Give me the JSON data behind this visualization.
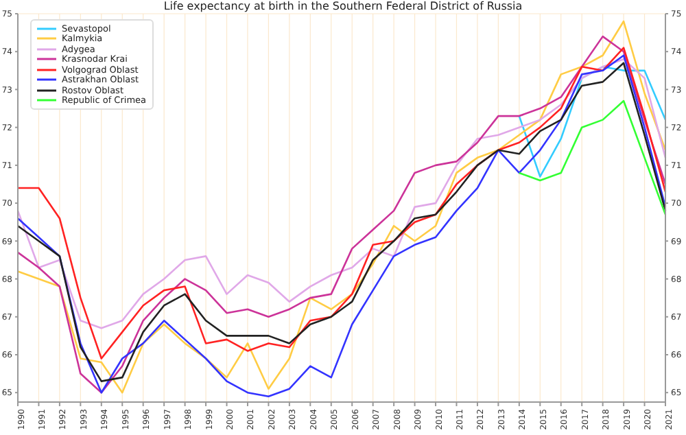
{
  "chart_data": {
    "type": "line",
    "title": "Life expectancy at birth in the Southern Federal District of Russia",
    "categories": [
      "1990",
      "1991",
      "1992",
      "1993",
      "1994",
      "1995",
      "1996",
      "1997",
      "1998",
      "1999",
      "2000",
      "2001",
      "2002",
      "2003",
      "2004",
      "2005",
      "2006",
      "2007",
      "2008",
      "2009",
      "2010",
      "2011",
      "2012",
      "2013",
      "2014",
      "2015",
      "2016",
      "2017",
      "2018",
      "2019",
      "2020",
      "2021"
    ],
    "series": [
      {
        "name": "Sevastopol",
        "color": "#33ccff",
        "values": [
          null,
          null,
          null,
          null,
          null,
          null,
          null,
          null,
          null,
          null,
          null,
          null,
          null,
          null,
          null,
          null,
          null,
          null,
          null,
          null,
          null,
          null,
          null,
          null,
          72.3,
          70.7,
          71.7,
          73.3,
          73.6,
          73.5,
          73.5,
          72.2
        ]
      },
      {
        "name": "Kalmykia",
        "color": "#ffcc44",
        "values": [
          68.2,
          68.0,
          67.8,
          65.9,
          65.8,
          65.0,
          66.3,
          66.8,
          66.3,
          65.9,
          65.4,
          66.3,
          65.1,
          65.9,
          67.5,
          67.2,
          67.6,
          68.4,
          69.4,
          69.0,
          69.4,
          70.8,
          71.2,
          71.4,
          71.8,
          72.2,
          73.4,
          73.6,
          73.9,
          74.8,
          72.9,
          71.4
        ]
      },
      {
        "name": "Adygea",
        "color": "#e0a8e8",
        "values": [
          69.8,
          68.3,
          68.5,
          66.9,
          66.7,
          66.9,
          67.6,
          68.0,
          68.5,
          68.6,
          67.6,
          68.1,
          67.9,
          67.4,
          67.8,
          68.1,
          68.3,
          68.8,
          68.6,
          69.9,
          70.0,
          71.0,
          71.7,
          71.8,
          72.0,
          72.2,
          72.6,
          73.3,
          73.6,
          73.8,
          73.3,
          71.2
        ]
      },
      {
        "name": "Krasnodar Krai",
        "color": "#cc3399",
        "values": [
          68.7,
          68.3,
          67.8,
          65.5,
          65.0,
          65.7,
          66.9,
          67.5,
          68.0,
          67.7,
          67.1,
          67.2,
          67.0,
          67.2,
          67.5,
          67.6,
          68.8,
          69.3,
          69.8,
          70.8,
          71.0,
          71.1,
          71.6,
          72.3,
          72.3,
          72.5,
          72.8,
          73.6,
          74.4,
          74.0,
          72.2,
          70.5
        ]
      },
      {
        "name": "Volgograd Oblast",
        "color": "#ff2222",
        "values": [
          70.4,
          70.4,
          69.6,
          67.5,
          65.9,
          66.6,
          67.3,
          67.7,
          67.8,
          66.3,
          66.4,
          66.1,
          66.3,
          66.2,
          66.9,
          67.0,
          67.6,
          68.9,
          69.0,
          69.5,
          69.7,
          70.5,
          71.0,
          71.4,
          71.6,
          72.0,
          72.5,
          73.6,
          73.5,
          74.1,
          72.3,
          70.3
        ]
      },
      {
        "name": "Astrakhan Oblast",
        "color": "#3333ff",
        "values": [
          69.6,
          69.1,
          68.6,
          66.3,
          65.0,
          65.9,
          66.3,
          66.9,
          66.4,
          65.9,
          65.3,
          65.0,
          64.9,
          65.1,
          65.7,
          65.4,
          66.8,
          67.7,
          68.6,
          68.9,
          69.1,
          69.8,
          70.4,
          71.4,
          70.8,
          71.4,
          72.2,
          73.4,
          73.5,
          73.9,
          72.0,
          69.9
        ]
      },
      {
        "name": "Rostov Oblast",
        "color": "#222222",
        "values": [
          69.4,
          69.0,
          68.6,
          66.2,
          65.3,
          65.4,
          66.6,
          67.3,
          67.6,
          66.9,
          66.5,
          66.5,
          66.5,
          66.3,
          66.8,
          67.0,
          67.4,
          68.5,
          69.0,
          69.6,
          69.7,
          70.3,
          71.0,
          71.4,
          71.3,
          71.9,
          72.2,
          73.1,
          73.2,
          73.7,
          71.8,
          69.8
        ]
      },
      {
        "name": "Republic of Crimea",
        "color": "#33ff33",
        "values": [
          null,
          null,
          null,
          null,
          null,
          null,
          null,
          null,
          null,
          null,
          null,
          null,
          null,
          null,
          null,
          null,
          null,
          null,
          null,
          null,
          null,
          null,
          null,
          null,
          70.8,
          70.6,
          70.8,
          72.0,
          72.2,
          72.7,
          71.2,
          69.7
        ]
      }
    ],
    "ylim": [
      64.75,
      75
    ],
    "yticks": [
      65,
      66,
      67,
      68,
      69,
      70,
      71,
      72,
      73,
      74,
      75
    ],
    "y2lim": [
      64.75,
      75
    ],
    "y2ticks": [
      65,
      66,
      67,
      68,
      69,
      70,
      71,
      72,
      73,
      74,
      75
    ],
    "grid": true,
    "legend": "top left",
    "marker": "none",
    "line_style": "solid"
  }
}
